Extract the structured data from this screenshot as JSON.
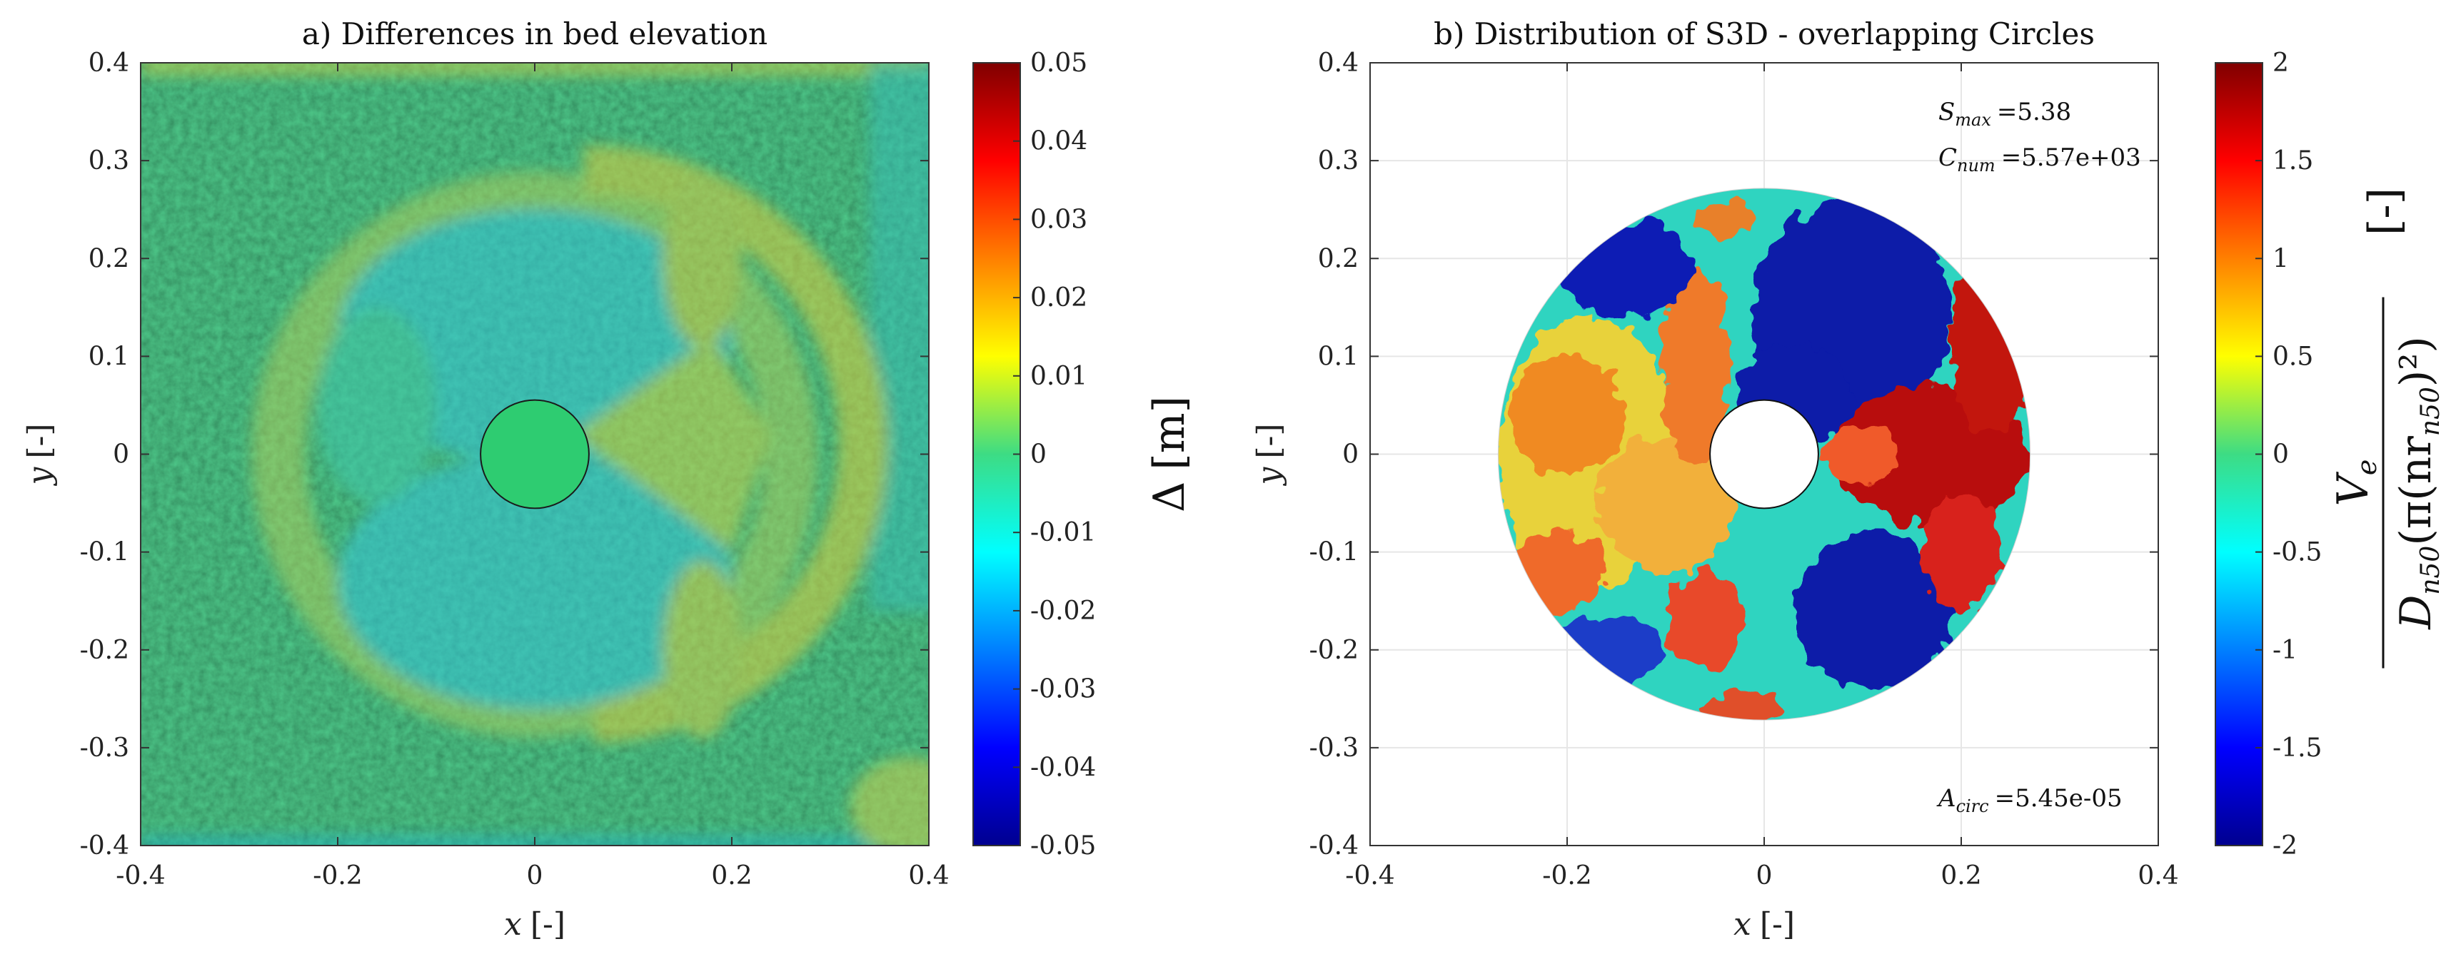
{
  "chart_data": [
    {
      "type": "heatmap",
      "title": "a) Differences in bed elevation",
      "xlabel_var": "x",
      "xlabel_unit": "[-]",
      "ylabel_var": "y",
      "ylabel_unit": "[-]",
      "xlim": [
        -0.4,
        0.4
      ],
      "ylim": [
        -0.4,
        0.4
      ],
      "xticks": [
        "-0.4",
        "-0.2",
        "0",
        "0.2",
        "0.4"
      ],
      "yticks": [
        "0.4",
        "0.3",
        "0.2",
        "0.1",
        "0",
        "-0.1",
        "-0.2",
        "-0.3",
        "-0.4"
      ],
      "colormap": "jet",
      "colorbar": {
        "label_symbol": "Δ",
        "label_unit": "[m]",
        "range": [
          -0.05,
          0.05
        ],
        "ticks": [
          "0.05",
          "0.04",
          "0.03",
          "0.02",
          "0.01",
          "0",
          "-0.01",
          "-0.02",
          "-0.03",
          "-0.04",
          "-0.05"
        ]
      },
      "pile": {
        "center": [
          0,
          0
        ],
        "radius": 0.055,
        "color": "#2ecc71"
      },
      "scour_ring_outer_radius": 0.29,
      "grid": false
    },
    {
      "type": "heatmap",
      "title": "b) Distribution of S3D - overlapping Circles",
      "xlabel_var": "x",
      "xlabel_unit": "[-]",
      "ylabel_var": "y",
      "ylabel_unit": "[-]",
      "xlim": [
        -0.4,
        0.4
      ],
      "ylim": [
        -0.4,
        0.4
      ],
      "xticks": [
        "-0.4",
        "-0.2",
        "0",
        "0.2",
        "0.4"
      ],
      "yticks": [
        "0.4",
        "0.3",
        "0.2",
        "0.1",
        "0",
        "-0.1",
        "-0.2",
        "-0.3",
        "-0.4"
      ],
      "colormap": "jet",
      "grid": true,
      "annulus": {
        "inner_radius": 0.055,
        "outer_radius": 0.27
      },
      "annotations": {
        "smax_sym": "S",
        "smax_sub": "max",
        "smax_val": "=5.38",
        "cnum_sym": "C",
        "cnum_sub": "num",
        "cnum_val": "=5.57e+03",
        "acirc_sym": "A",
        "acirc_sub": "circ",
        "acirc_val": "=5.45e-05"
      },
      "colorbar": {
        "range": [
          -2,
          2
        ],
        "ticks": [
          "2",
          "1.5",
          "1",
          "0.5",
          "0",
          "-0.5",
          "-1",
          "-1.5",
          "-2"
        ],
        "label_numerator": "V",
        "label_numerator_sub": "e",
        "label_denominator": "D",
        "label_denominator_sub": "n50",
        "label_denominator_rest": "(π(nr",
        "label_denominator_rest_sub": "n50",
        "label_denominator_close": ")²)",
        "label_unit": "[-]"
      }
    }
  ]
}
